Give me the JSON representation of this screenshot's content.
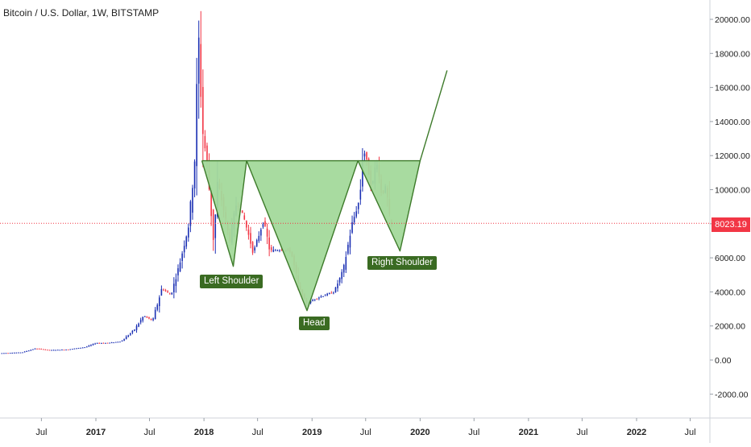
{
  "chart_data": {
    "type": "candlestick",
    "title": "Bitcoin / U.S. Dollar, 1W, BITSTAMP",
    "ylim": [
      -3000,
      21000
    ],
    "y_ticks": [
      20000,
      18000,
      16000,
      14000,
      12000,
      10000,
      8000,
      6000,
      4000,
      2000,
      0,
      -2000
    ],
    "y_tick_labels": [
      "20000.00",
      "18000.00",
      "16000.00",
      "14000.00",
      "12000.00",
      "10000.00",
      "6000.00",
      "4000.00",
      "2000.00",
      "0.00",
      "-2000.00"
    ],
    "x_ticks": [
      {
        "date": "2016-07-01",
        "label": "Jul"
      },
      {
        "date": "2017-01-01",
        "label": "2017"
      },
      {
        "date": "2017-07-01",
        "label": "Jul"
      },
      {
        "date": "2018-01-01",
        "label": "2018"
      },
      {
        "date": "2018-07-01",
        "label": "Jul"
      },
      {
        "date": "2019-01-01",
        "label": "2019"
      },
      {
        "date": "2019-07-01",
        "label": "Jul"
      },
      {
        "date": "2020-01-01",
        "label": "2020"
      },
      {
        "date": "2020-07-01",
        "label": "Jul"
      },
      {
        "date": "2021-01-01",
        "label": "2021"
      },
      {
        "date": "2021-07-01",
        "label": "Jul"
      },
      {
        "date": "2022-01-01",
        "label": "2022"
      },
      {
        "date": "2022-07-01",
        "label": "Jul"
      }
    ],
    "x_range": [
      "2016-02-15",
      "2022-10-15"
    ],
    "last_price": 8023.19,
    "last_price_label": "8023.19",
    "price_path": [
      [
        "2016-02-15",
        400
      ],
      [
        "2016-05-01",
        450
      ],
      [
        "2016-06-15",
        680
      ],
      [
        "2016-08-01",
        580
      ],
      [
        "2016-10-01",
        620
      ],
      [
        "2016-12-01",
        760
      ],
      [
        "2017-01-05",
        1000
      ],
      [
        "2017-02-15",
        1000
      ],
      [
        "2017-04-01",
        1100
      ],
      [
        "2017-05-15",
        1800
      ],
      [
        "2017-06-15",
        2600
      ],
      [
        "2017-07-15",
        2300
      ],
      [
        "2017-08-15",
        4200
      ],
      [
        "2017-09-15",
        3800
      ],
      [
        "2017-10-15",
        5700
      ],
      [
        "2017-11-15",
        8000
      ],
      [
        "2017-12-05",
        12000
      ],
      [
        "2017-12-17",
        19000
      ],
      [
        "2017-12-31",
        13500
      ],
      [
        "2018-01-15",
        11500
      ],
      [
        "2018-02-06",
        7000
      ],
      [
        "2018-02-20",
        10500
      ],
      [
        "2018-03-10",
        9000
      ],
      [
        "2018-04-01",
        7000
      ],
      [
        "2018-04-25",
        9300
      ],
      [
        "2018-05-20",
        8300
      ],
      [
        "2018-06-20",
        6300
      ],
      [
        "2018-07-25",
        8200
      ],
      [
        "2018-08-15",
        6400
      ],
      [
        "2018-09-20",
        6500
      ],
      [
        "2018-10-25",
        6400
      ],
      [
        "2018-11-20",
        4300
      ],
      [
        "2018-12-15",
        3300
      ],
      [
        "2019-01-15",
        3600
      ],
      [
        "2019-02-15",
        3800
      ],
      [
        "2019-03-20",
        4000
      ],
      [
        "2019-04-20",
        5300
      ],
      [
        "2019-05-20",
        8000
      ],
      [
        "2019-06-15",
        9500
      ],
      [
        "2019-06-26",
        12500
      ],
      [
        "2019-07-10",
        11500
      ],
      [
        "2019-07-25",
        10000
      ],
      [
        "2019-08-10",
        11800
      ],
      [
        "2019-08-28",
        9700
      ],
      [
        "2019-09-12",
        10200
      ],
      [
        "2019-09-24",
        8023
      ]
    ],
    "pattern": {
      "name": "Inverse head and shoulders",
      "neckline": [
        [
          "2017-12-25",
          11700
        ],
        [
          "2020-01-01",
          11700
        ]
      ],
      "left_shoulder": {
        "label": "Left Shoulder",
        "point": [
          "2018-04-10",
          5500
        ]
      },
      "head": {
        "label": "Head",
        "point": [
          "2018-12-15",
          2900
        ]
      },
      "right_shoulder": {
        "label": "Right Shoulder",
        "point": [
          "2019-10-25",
          6400
        ]
      },
      "projection": [
        [
          "2020-01-01",
          11700
        ],
        [
          "2020-04-01",
          17000
        ]
      ],
      "polyline": [
        [
          "2017-12-25",
          11700
        ],
        [
          "2018-04-10",
          5500
        ],
        [
          "2018-05-25",
          11700
        ],
        [
          "2018-12-15",
          2900
        ],
        [
          "2019-06-05",
          11700
        ],
        [
          "2019-10-25",
          6400
        ],
        [
          "2020-01-01",
          11700
        ],
        [
          "2020-04-01",
          17000
        ]
      ]
    },
    "colors": {
      "up": "#1a2fb3",
      "down": "#f23645",
      "pattern_fill": "#a3d99b",
      "pattern_line": "#3d7a2a",
      "label_bg": "#3a6b22",
      "price_line": "#f23645"
    }
  }
}
